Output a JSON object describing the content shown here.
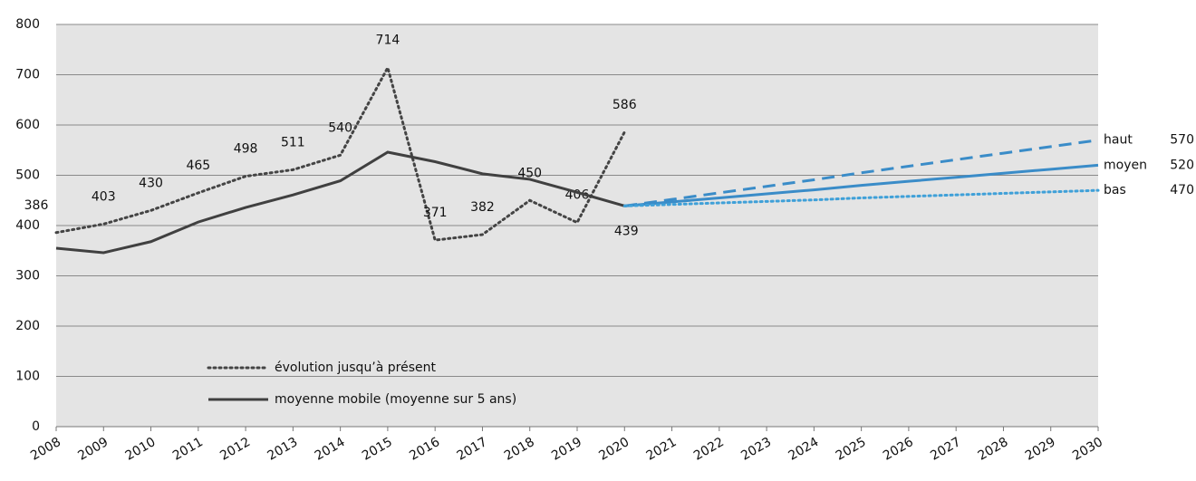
{
  "chart_data": {
    "type": "line",
    "categories": [
      "2008",
      "2009",
      "2010",
      "2011",
      "2012",
      "2013",
      "2014",
      "2015",
      "2016",
      "2017",
      "2018",
      "2019",
      "2020",
      "2021",
      "2022",
      "2023",
      "2024",
      "2025",
      "2026",
      "2027",
      "2028",
      "2029",
      "2030"
    ],
    "ylim": [
      0,
      800
    ],
    "yticks": [
      0,
      100,
      200,
      300,
      400,
      500,
      600,
      700,
      800
    ],
    "grid": true,
    "series": [
      {
        "name": "évolution jusqu’à présent",
        "color": "#444444",
        "style": "dotted",
        "in_legend": true,
        "data_labels": true,
        "values": [
          386,
          403,
          430,
          465,
          498,
          511,
          540,
          714,
          371,
          382,
          450,
          406,
          586,
          null,
          null,
          null,
          null,
          null,
          null,
          null,
          null,
          null,
          null
        ]
      },
      {
        "name": "moyenne mobile (moyenne sur 5 ans)",
        "color": "#404040",
        "style": "solid",
        "in_legend": true,
        "values": [
          355,
          346,
          368,
          407,
          436,
          461,
          489,
          546,
          527,
          503,
          492,
          466,
          439,
          null,
          null,
          null,
          null,
          null,
          null,
          null,
          null,
          null,
          null
        ],
        "value_labels": [
          null,
          null,
          null,
          null,
          null,
          null,
          null,
          null,
          null,
          null,
          null,
          null,
          "439",
          null,
          null,
          null,
          null,
          null,
          null,
          null,
          null,
          null,
          null
        ]
      },
      {
        "name": "haut",
        "color": "#3a8cc8",
        "style": "dashed",
        "end_label": true,
        "values": [
          null,
          null,
          null,
          null,
          null,
          null,
          null,
          null,
          null,
          null,
          null,
          null,
          439,
          452,
          465,
          478,
          491,
          505,
          518,
          531,
          544,
          557,
          570
        ]
      },
      {
        "name": "moyen",
        "color": "#3a8cc8",
        "style": "solid",
        "end_label": true,
        "values": [
          null,
          null,
          null,
          null,
          null,
          null,
          null,
          null,
          null,
          null,
          null,
          null,
          439,
          447,
          455,
          463,
          471,
          480,
          488,
          496,
          504,
          512,
          520
        ]
      },
      {
        "name": "bas",
        "color": "#3fa0d8",
        "style": "dotted",
        "end_label": true,
        "values": [
          null,
          null,
          null,
          null,
          null,
          null,
          null,
          null,
          null,
          null,
          null,
          null,
          439,
          442,
          445,
          448,
          451,
          455,
          458,
          461,
          464,
          467,
          470
        ]
      }
    ]
  }
}
